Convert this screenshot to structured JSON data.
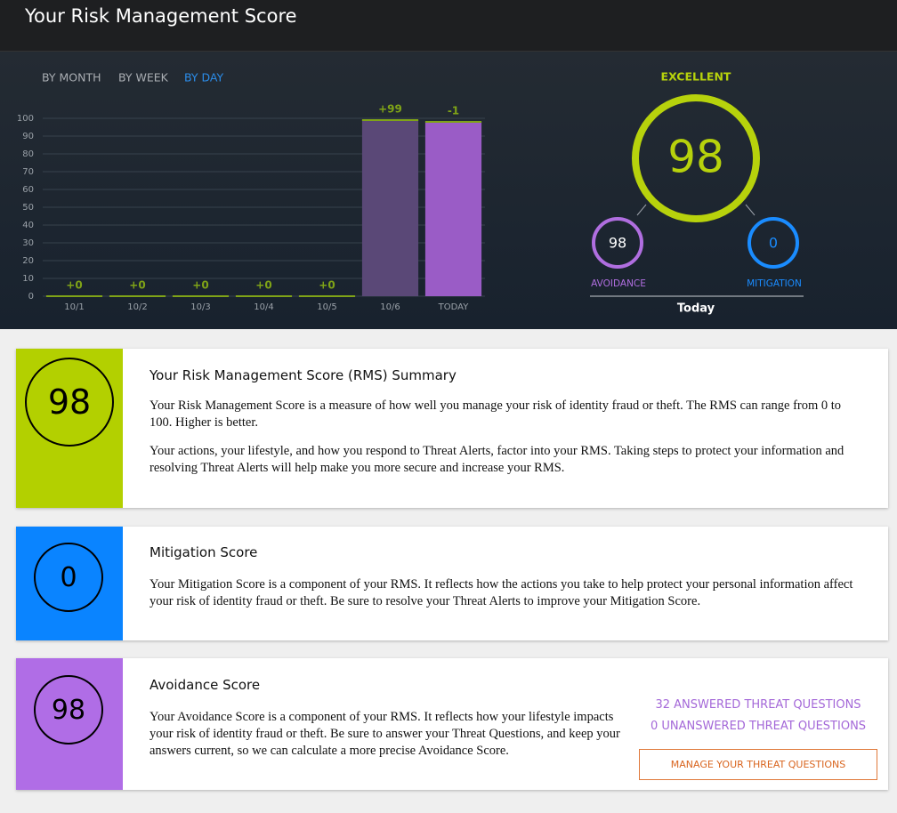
{
  "header": {
    "title": "Your Risk Management Score"
  },
  "tabs": {
    "items": [
      "BY MONTH",
      "BY WEEK",
      "BY DAY"
    ],
    "selected": 2
  },
  "chart_data": {
    "type": "bar",
    "categories": [
      "10/1",
      "10/2",
      "10/3",
      "10/4",
      "10/5",
      "10/6",
      "TODAY"
    ],
    "values": [
      0,
      0,
      0,
      0,
      0,
      99,
      98
    ],
    "colors": [
      "#6a8f2a",
      "#6a8f2a",
      "#6a8f2a",
      "#6a8f2a",
      "#6a8f2a",
      "#5a4877",
      "#9a5cc6"
    ],
    "top_color": "#7fa317",
    "deltas": [
      0,
      0,
      0,
      0,
      0,
      99,
      -1
    ],
    "delta_labels": [
      "+0",
      "+0",
      "+0",
      "+0",
      "+0",
      "+99",
      "-1"
    ],
    "ylim": [
      0,
      100
    ],
    "yticks": [
      0,
      10,
      20,
      30,
      40,
      50,
      60,
      70,
      80,
      90,
      100
    ],
    "grid": true
  },
  "gauge": {
    "rating": "EXCELLENT",
    "score": 98,
    "avoidance": {
      "score": 98,
      "label": "AVOIDANCE"
    },
    "mitigation": {
      "score": 0,
      "label": "MITIGATION"
    },
    "period": "Today"
  },
  "cards": [
    {
      "score": 98,
      "title": "Your Risk Management Score (RMS) Summary",
      "paragraphs": [
        "Your Risk Management Score is a measure of how well you manage your risk of identity fraud or theft. The RMS can range from 0 to 100. Higher is better.",
        "Your actions, your lifestyle, and how you respond to Threat Alerts, factor into your RMS. Taking steps to protect your information and resolving Threat Alerts will help make you more secure and increase your RMS."
      ]
    },
    {
      "score": 0,
      "title": "Mitigation Score",
      "paragraphs": [
        "Your Mitigation Score is a component of your RMS. It reflects how the actions you take to help protect your personal information affect your risk of identity fraud or theft. Be sure to resolve your Threat Alerts to improve your Mitigation Score."
      ]
    },
    {
      "score": 98,
      "title": "Avoidance Score",
      "paragraphs": [
        "Your Avoidance Score is a component of your RMS. It reflects how your lifestyle impacts your risk of identity fraud or theft. Be sure to answer your Threat Questions, and keep your answers current, so we can calculate a more precise Avoidance Score."
      ]
    }
  ],
  "questions": {
    "answered": "32 ANSWERED THREAT QUESTIONS",
    "unanswered": "0 UNANSWERED THREAT QUESTIONS",
    "button": "MANAGE YOUR THREAT QUESTIONS"
  }
}
